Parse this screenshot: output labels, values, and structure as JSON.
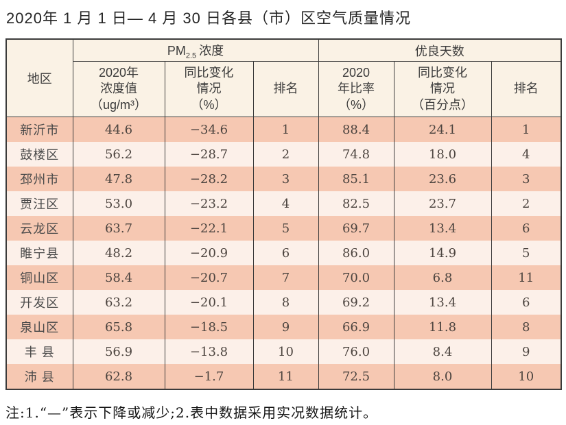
{
  "title": "2020年 1 月 1 日— 4 月 30 日各县（市）区空气质量情况",
  "note": "注:1.“—”表示下降或减少;2.表中数据采用实况数据统计。",
  "colors": {
    "row_odd_bg": "#f6c8b2",
    "row_even_bg": "#fcf0e9",
    "header_bg": "#faf2e5",
    "border": "#3b3b3b"
  },
  "table": {
    "corner_header": "地区",
    "groups": {
      "pm": {
        "prefix": "PM",
        "sub": "2.5",
        "label": "浓度"
      },
      "good_days": "优良天数"
    },
    "columns": {
      "pm_value": {
        "l1": "2020年",
        "l2": "浓度值",
        "l3": "（ug/m³）"
      },
      "pm_change": {
        "l1": "同比变化",
        "l2": "情况",
        "l3": "（%）"
      },
      "pm_rank": "排名",
      "rate": {
        "l1": "2020",
        "l2": "年比率",
        "l3": "（%）"
      },
      "rate_change": {
        "l1": "同比变化",
        "l2": "情况",
        "l3": "（百分点）"
      },
      "rate_rank": "排名"
    }
  },
  "chart_data": {
    "type": "table",
    "title": "2020年1月1日—4月30日各县（市）区空气质量情况",
    "columns": [
      "地区",
      "PM2.5浓度 2020年浓度值（ug/m³）",
      "PM2.5浓度 同比变化情况（%）",
      "PM2.5浓度 排名",
      "优良天数 2020年比率（%）",
      "优良天数 同比变化情况（百分点）",
      "优良天数 排名"
    ],
    "rows": [
      [
        "新沂市",
        "44.6",
        "−34.6",
        "1",
        "88.4",
        "24.1",
        "1"
      ],
      [
        "鼓楼区",
        "56.2",
        "−28.7",
        "2",
        "74.8",
        "18.0",
        "4"
      ],
      [
        "邳州市",
        "47.8",
        "−28.2",
        "3",
        "85.1",
        "23.6",
        "3"
      ],
      [
        "贾汪区",
        "53.0",
        "−23.2",
        "4",
        "82.5",
        "23.7",
        "2"
      ],
      [
        "云龙区",
        "63.7",
        "−22.1",
        "5",
        "69.7",
        "13.4",
        "6"
      ],
      [
        "睢宁县",
        "48.2",
        "−20.9",
        "6",
        "86.0",
        "14.9",
        "5"
      ],
      [
        "铜山区",
        "58.4",
        "−20.7",
        "7",
        "70.0",
        "6.8",
        "11"
      ],
      [
        "开发区",
        "63.2",
        "−20.1",
        "8",
        "69.2",
        "13.4",
        "6"
      ],
      [
        "泉山区",
        "65.8",
        "−18.5",
        "9",
        "66.9",
        "11.8",
        "8"
      ],
      [
        "丰 县",
        "56.9",
        "−13.8",
        "10",
        "76.0",
        "8.4",
        "9"
      ],
      [
        "沛 县",
        "62.8",
        "−1.7",
        "11",
        "72.5",
        "8.0",
        "10"
      ]
    ]
  }
}
